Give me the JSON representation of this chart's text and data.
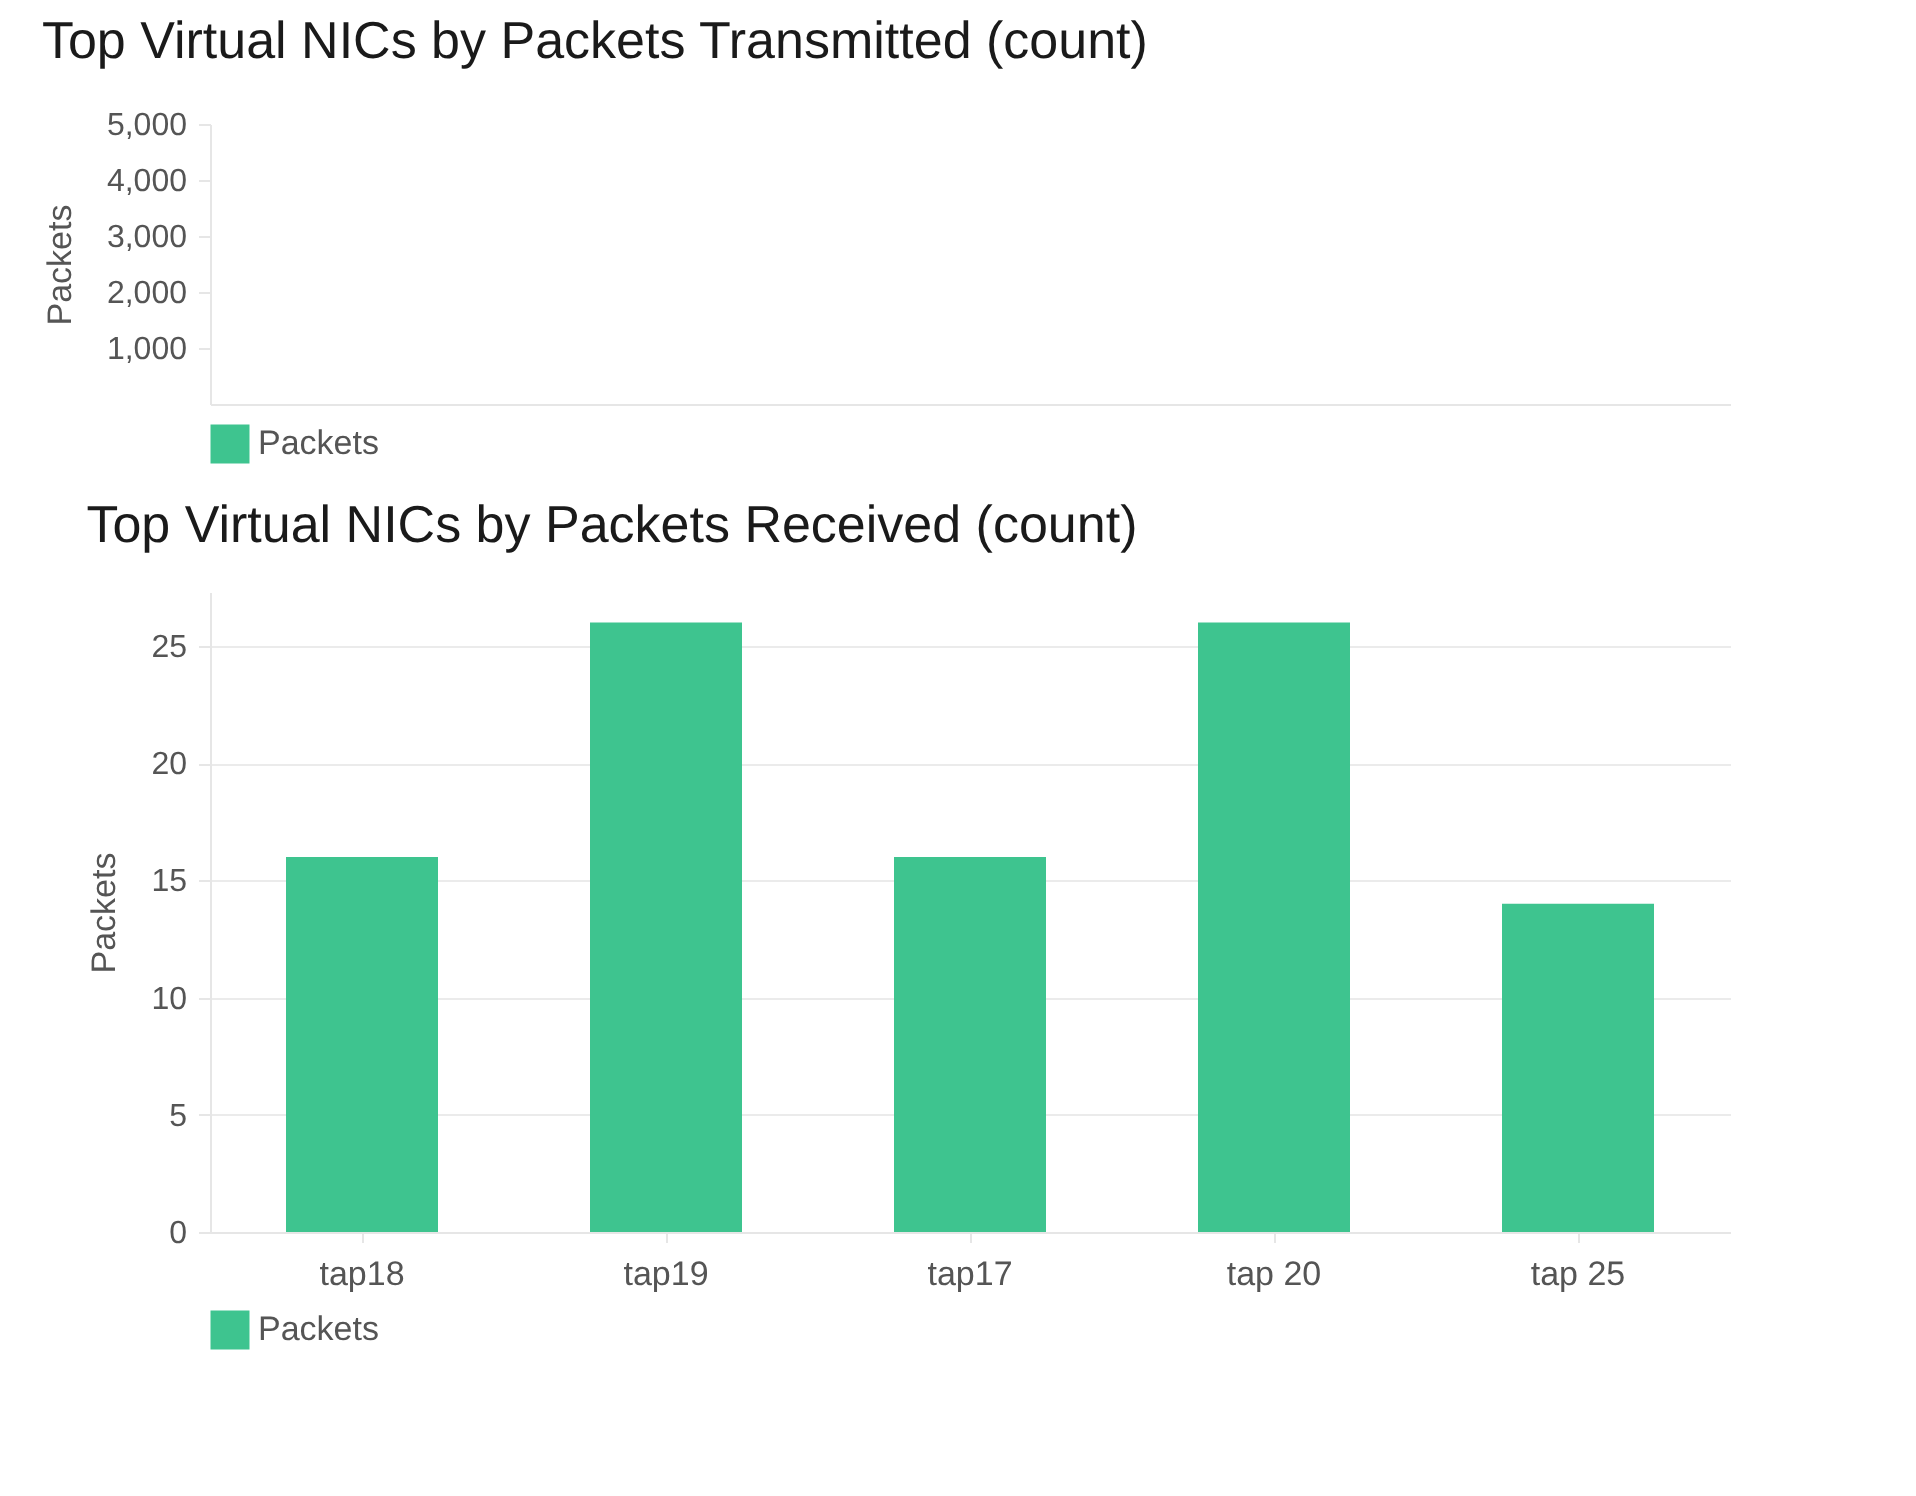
{
  "chart_data": [
    {
      "type": "bar",
      "title": "Top Virtual NICs by Packets Transmitted (count)",
      "ylabel": "Packets",
      "series": [
        {
          "name": "Packets",
          "color": "#3ec48f"
        }
      ],
      "ylim": [
        0,
        5000
      ],
      "yticks": [
        {
          "value": 1000,
          "label": "1,000"
        },
        {
          "value": 2000,
          "label": "2,000"
        },
        {
          "value": 3000,
          "label": "3,000"
        },
        {
          "value": 4000,
          "label": "4,000"
        },
        {
          "value": 5000,
          "label": "5,000"
        }
      ],
      "legend": "bottom left"
    },
    {
      "type": "bar",
      "title": "Top Virtual NICs by Packets Received (count)",
      "ylabel": "Packets",
      "categories": [
        "tap18",
        "tap19",
        "tap17",
        "tap 20",
        "tap 25"
      ],
      "series": [
        {
          "name": "Packets",
          "color": "#3ec48f",
          "values": [
            16,
            26,
            16,
            26,
            14
          ]
        }
      ],
      "ylim": [
        0,
        27.3
      ],
      "yticks": [
        0,
        5,
        10,
        15,
        20,
        25
      ],
      "grid": "y",
      "legend": "bottom left"
    }
  ]
}
